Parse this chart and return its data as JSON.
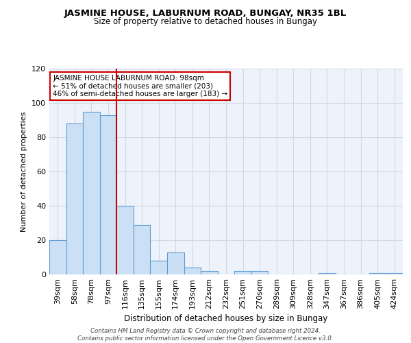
{
  "title1": "JASMINE HOUSE, LABURNUM ROAD, BUNGAY, NR35 1BL",
  "title2": "Size of property relative to detached houses in Bungay",
  "xlabel": "Distribution of detached houses by size in Bungay",
  "ylabel": "Number of detached properties",
  "categories": [
    "39sqm",
    "58sqm",
    "78sqm",
    "97sqm",
    "116sqm",
    "135sqm",
    "155sqm",
    "174sqm",
    "193sqm",
    "212sqm",
    "232sqm",
    "251sqm",
    "270sqm",
    "289sqm",
    "309sqm",
    "328sqm",
    "347sqm",
    "367sqm",
    "386sqm",
    "405sqm",
    "424sqm"
  ],
  "values": [
    20,
    88,
    95,
    93,
    40,
    29,
    8,
    13,
    4,
    2,
    0,
    2,
    2,
    0,
    0,
    0,
    1,
    0,
    0,
    1,
    1
  ],
  "bar_color": "#cce0f5",
  "bar_edge_color": "#5b9bd5",
  "vline_x": 3.5,
  "vline_color": "#cc0000",
  "annotation_text": "JASMINE HOUSE LABURNUM ROAD: 98sqm\n← 51% of detached houses are smaller (203)\n46% of semi-detached houses are larger (183) →",
  "annotation_box_color": "white",
  "annotation_box_edge": "#cc0000",
  "ylim": [
    0,
    120
  ],
  "yticks": [
    0,
    20,
    40,
    60,
    80,
    100,
    120
  ],
  "grid_color": "#d0d8e8",
  "bg_color": "#eef2fa",
  "footer": "Contains HM Land Registry data © Crown copyright and database right 2024.\nContains public sector information licensed under the Open Government Licence v3.0."
}
